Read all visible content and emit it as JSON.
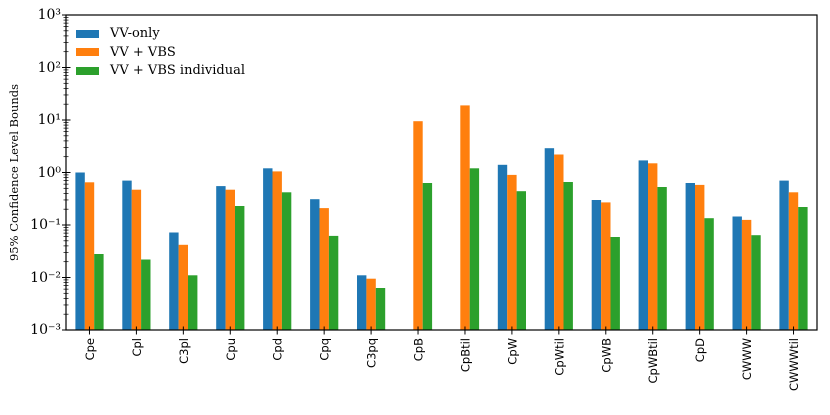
{
  "figure": {
    "background": "#ffffff",
    "axis_color": "#000000"
  },
  "chart_data": {
    "type": "bar",
    "title": "",
    "xlabel": "",
    "ylabel": "95% Confidence Level Bounds",
    "yscale": "log",
    "ylim": [
      0.001,
      1000
    ],
    "ytick_labels": [
      "10⁻³",
      "10⁻²",
      "10⁻¹",
      "10⁰",
      "10¹",
      "10²",
      "10³"
    ],
    "grid": false,
    "legend_position": "upper-left",
    "categories": [
      "Cpe",
      "Cpl",
      "C3pl",
      "Cpu",
      "Cpd",
      "Cpq",
      "C3pq",
      "CpB",
      "CpBtil",
      "CpW",
      "CpWtil",
      "CpWB",
      "CpWBtil",
      "CpD",
      "CWWW",
      "CWWWtil"
    ],
    "series": [
      {
        "name": "VV-only",
        "color": "#1f77b4",
        "values": [
          1.0,
          0.7,
          0.072,
          0.55,
          1.2,
          0.31,
          0.011,
          null,
          null,
          1.4,
          2.9,
          0.3,
          1.7,
          0.63,
          0.145,
          0.7
        ]
      },
      {
        "name": "VV + VBS",
        "color": "#ff7f0e",
        "values": [
          0.65,
          0.47,
          0.042,
          0.47,
          1.05,
          0.21,
          0.0095,
          9.5,
          19.0,
          0.9,
          2.2,
          0.27,
          1.5,
          0.58,
          0.125,
          0.42
        ]
      },
      {
        "name": "VV + VBS individual",
        "color": "#2ca02c",
        "values": [
          0.028,
          0.022,
          0.011,
          0.23,
          0.42,
          0.062,
          0.0063,
          0.63,
          1.2,
          0.44,
          0.66,
          0.059,
          0.53,
          0.135,
          0.064,
          0.22
        ]
      }
    ]
  }
}
